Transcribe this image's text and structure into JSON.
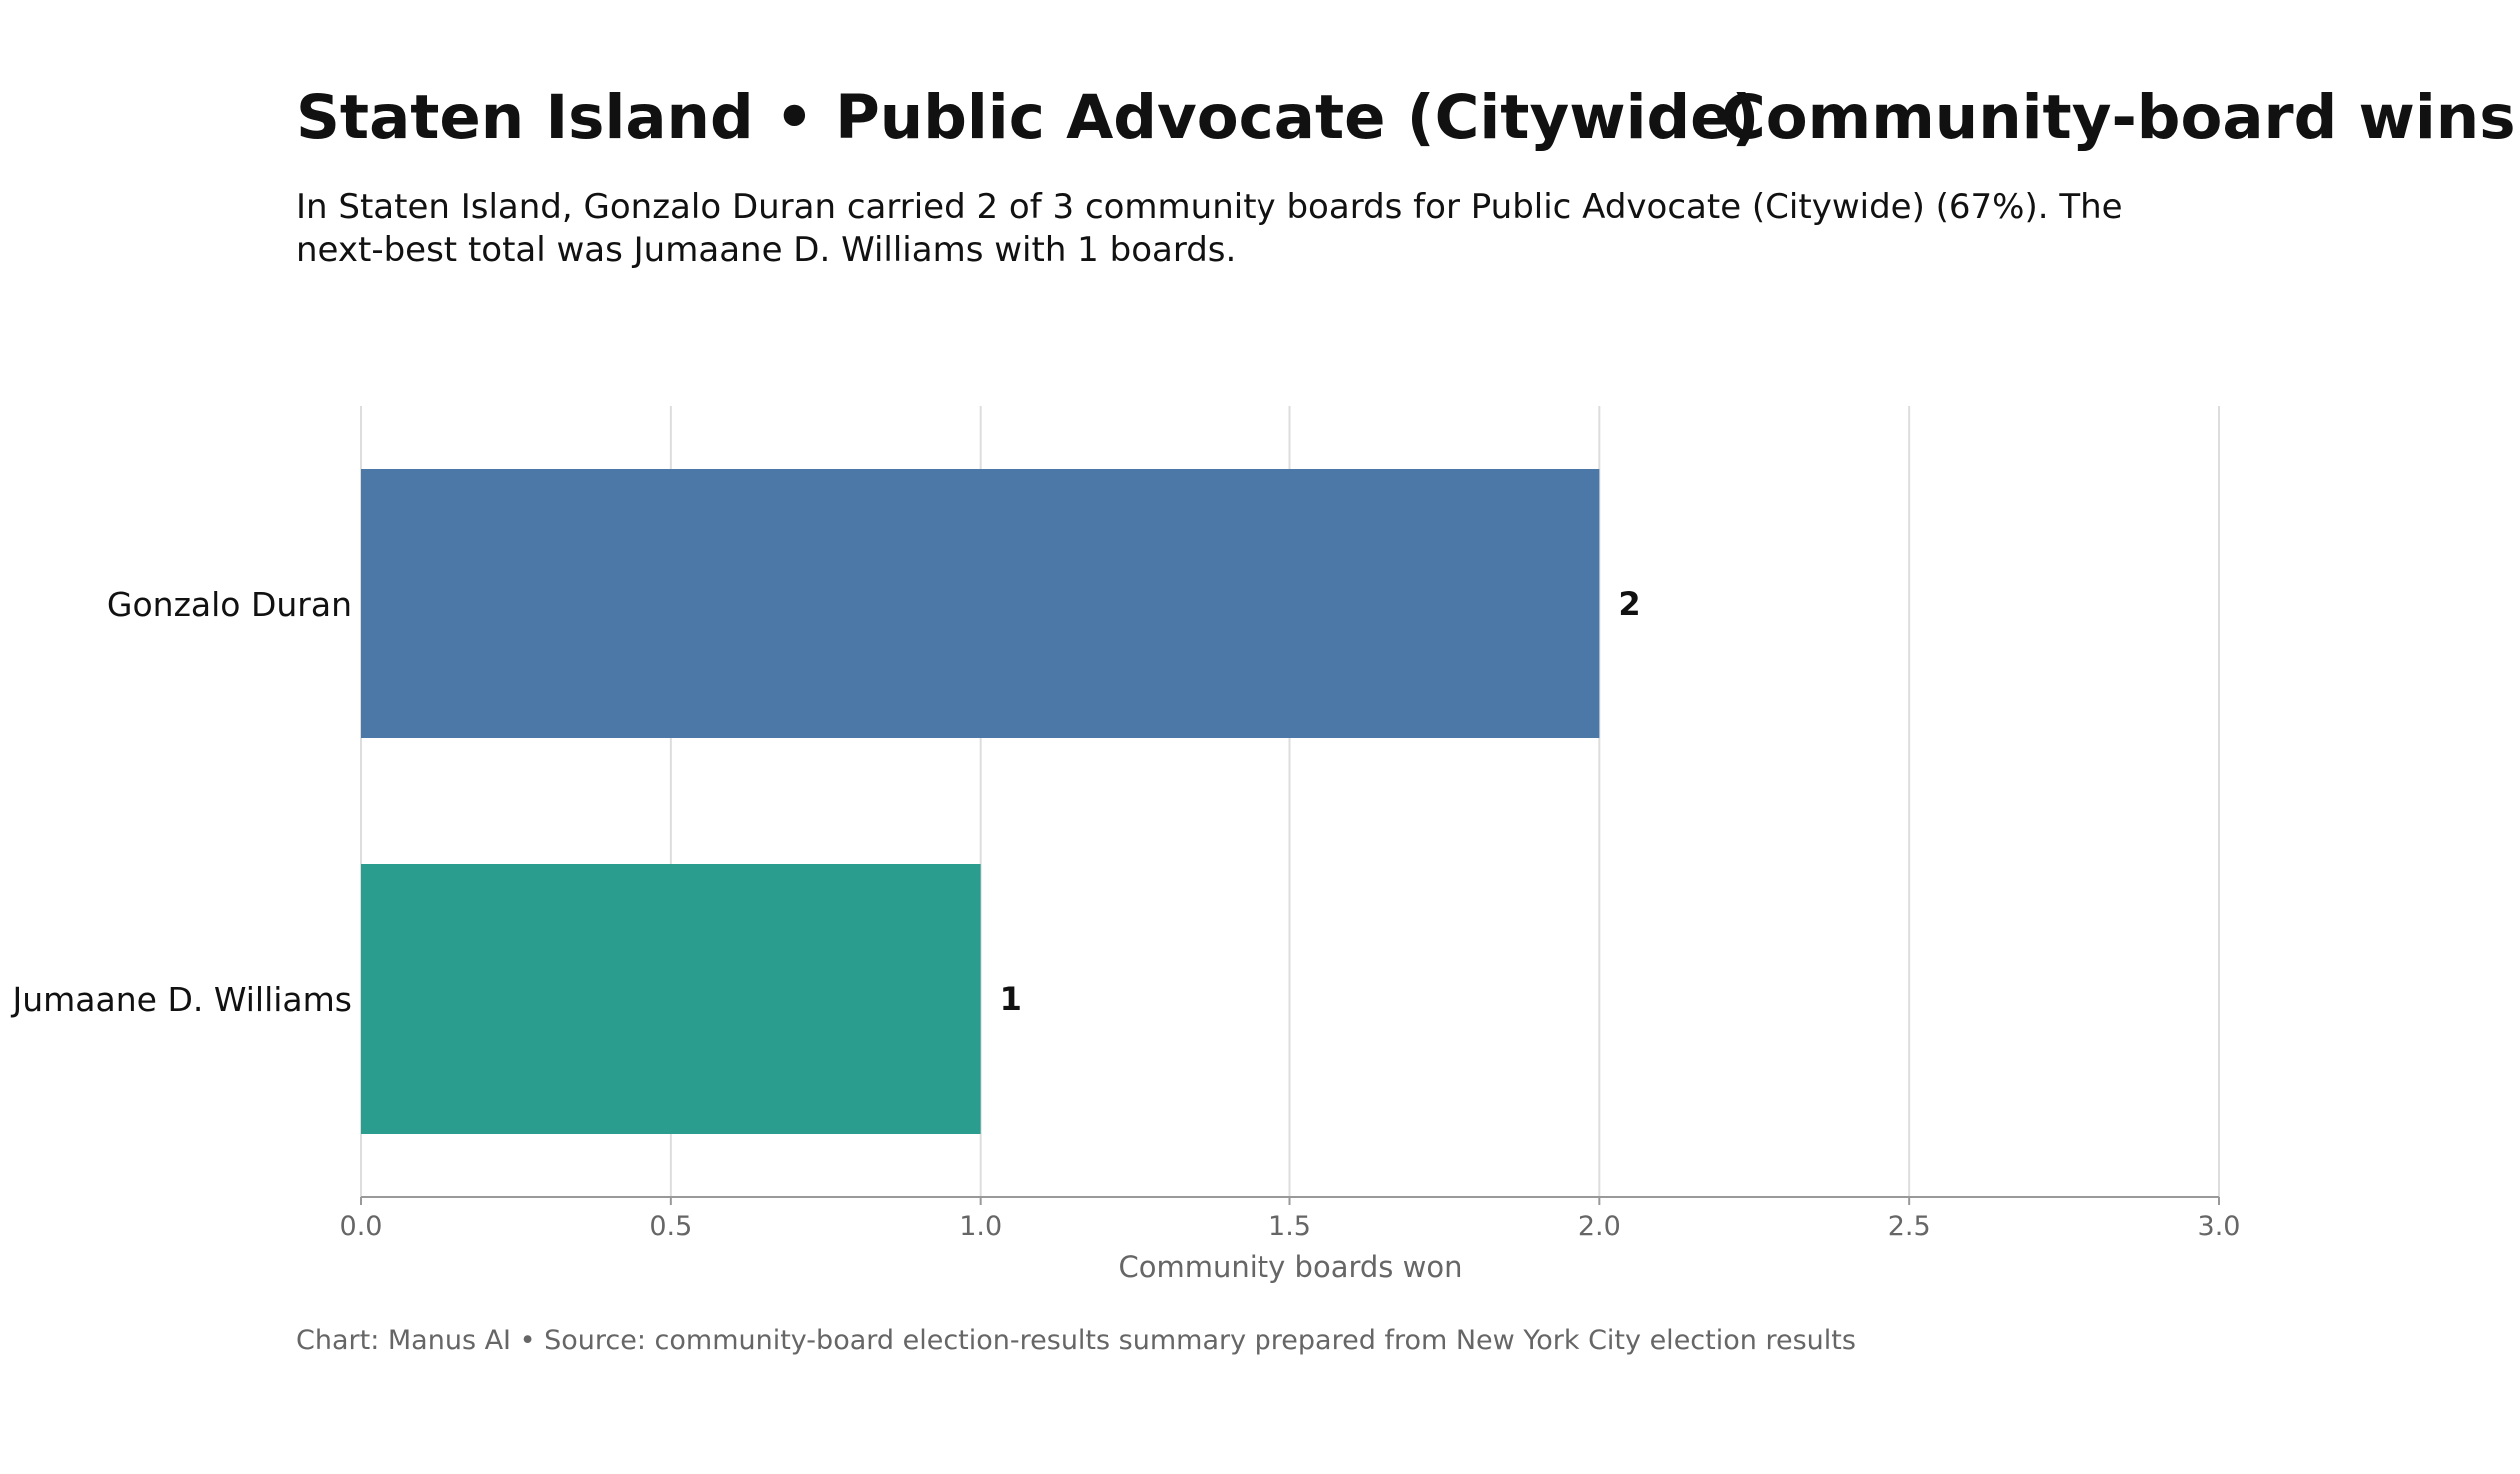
{
  "chart_data": {
    "type": "bar",
    "orientation": "horizontal",
    "title": "Staten Island • Public Advocate (Citywide)",
    "title_suffix": "Community-board wins",
    "subtitle_lines": [
      "In Staten Island, Gonzalo Duran carried 2 of 3 community boards for Public Advocate (Citywide) (67%). The",
      "next-best total was Jumaane D. Williams with 1 boards."
    ],
    "categories": [
      "Gonzalo Duran",
      "Jumaane D. Williams"
    ],
    "values": [
      2,
      1
    ],
    "value_labels": [
      "2",
      "1"
    ],
    "colors": [
      "#4c78a8",
      "#2a9d8f"
    ],
    "xlabel": "Community boards won",
    "xlim": [
      0,
      3
    ],
    "xticks": [
      "0.0",
      "0.5",
      "1.0",
      "1.5",
      "2.0",
      "2.5",
      "3.0"
    ],
    "xtick_values": [
      0,
      0.5,
      1,
      1.5,
      2,
      2.5,
      3
    ],
    "grid": true,
    "footer": "Chart: Manus AI • Source: community-board election-results summary prepared from New York City election results"
  }
}
